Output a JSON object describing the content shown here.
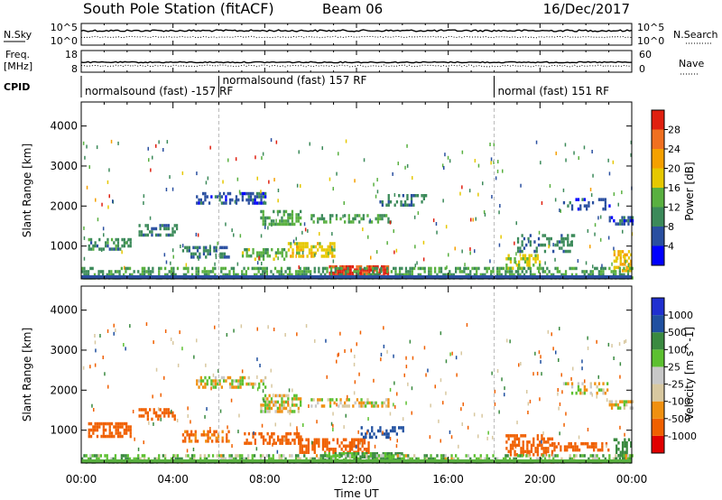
{
  "header": {
    "station": "South Pole Station (fitACF)",
    "beam": "Beam 06",
    "date": "16/Dec/2017"
  },
  "top_panels": {
    "nsky_label": "N.Sky",
    "nsearch_label": "N.Search",
    "freq_label_line1": "Freq.",
    "freq_label_line2": "[MHz]",
    "nave_label": "Nave",
    "cpid_label": "CPID",
    "noise_ticks_left": [
      "10^5",
      "10^0"
    ],
    "noise_ticks_right": [
      "10^5",
      "10^0"
    ],
    "freq_ticks": [
      "18",
      "8"
    ],
    "nave_ticks": [
      "60",
      "0"
    ],
    "cpid_segments": [
      {
        "label": "normalsound (fast) -157 RF",
        "start_hr": 0,
        "end_hr": 6
      },
      {
        "label": "normalsound (fast) 157 RF",
        "start_hr": 6,
        "end_hr": 18
      },
      {
        "label": "normal (fast) 151 RF",
        "start_hr": 18,
        "end_hr": 24
      }
    ]
  },
  "x_axis": {
    "label": "Time UT",
    "ticks": [
      "00:00",
      "04:00",
      "08:00",
      "12:00",
      "16:00",
      "20:00",
      "00:00"
    ],
    "range_hr": [
      0,
      24
    ]
  },
  "colors": {
    "power": [
      "#0000ff",
      "#2a4fa0",
      "#3c8a5a",
      "#59b040",
      "#e6c800",
      "#f5a000",
      "#f07020",
      "#e02010"
    ],
    "velocity": [
      "#e00000",
      "#f06000",
      "#f09010",
      "#d8c8a0",
      "#c8c8c8",
      "#5cc030",
      "#3a8a40",
      "#2050a0",
      "#2030d0"
    ]
  },
  "chart_data": [
    {
      "type": "heatmap",
      "title": "",
      "xlabel": "Time UT",
      "ylabel": "Slant Range [km]",
      "x_range_hr": [
        0,
        24
      ],
      "ylim": [
        180,
        4600
      ],
      "y_ticks": [
        "1000",
        "2000",
        "3000",
        "4000"
      ],
      "colorbar": {
        "label": "Power [dB]",
        "ticks": [
          "4",
          "8",
          "12",
          "16",
          "20",
          "24",
          "28"
        ],
        "range": [
          0,
          32
        ]
      },
      "echo_bands": [
        {
          "t0": 0.3,
          "t1": 2.2,
          "r0": 900,
          "r1": 1200,
          "value": 10,
          "density": 0.55
        },
        {
          "t0": 2.5,
          "t1": 4.2,
          "r0": 1250,
          "r1": 1550,
          "value": 9,
          "density": 0.5
        },
        {
          "t0": 4.4,
          "t1": 6.4,
          "r0": 700,
          "r1": 1000,
          "value": 9,
          "density": 0.45
        },
        {
          "t0": 5.0,
          "t1": 8.0,
          "r0": 2100,
          "r1": 2350,
          "value": 6,
          "density": 0.45
        },
        {
          "t0": 7.8,
          "t1": 9.6,
          "r0": 1550,
          "r1": 1900,
          "value": 13,
          "density": 0.6
        },
        {
          "t0": 7.0,
          "t1": 9.0,
          "r0": 650,
          "r1": 950,
          "value": 14,
          "density": 0.55
        },
        {
          "t0": 9.0,
          "t1": 11.0,
          "r0": 750,
          "r1": 1100,
          "value": 18,
          "density": 0.55
        },
        {
          "t0": 10.8,
          "t1": 13.4,
          "r0": 240,
          "r1": 520,
          "value": 29,
          "density": 0.85
        },
        {
          "t0": 10.0,
          "t1": 13.5,
          "r0": 1600,
          "r1": 1800,
          "value": 11,
          "density": 0.45
        },
        {
          "t0": 13.0,
          "t1": 15.0,
          "r0": 2000,
          "r1": 2300,
          "value": 8,
          "density": 0.4
        },
        {
          "t0": 18.5,
          "t1": 20.0,
          "r0": 450,
          "r1": 800,
          "value": 16,
          "density": 0.5
        },
        {
          "t0": 19.0,
          "t1": 21.5,
          "r0": 900,
          "r1": 1300,
          "value": 9,
          "density": 0.35
        },
        {
          "t0": 21.0,
          "t1": 23.0,
          "r0": 1900,
          "r1": 2200,
          "value": 6,
          "density": 0.35
        },
        {
          "t0": 23.0,
          "t1": 24.0,
          "r0": 1550,
          "r1": 1750,
          "value": 6,
          "density": 0.6
        },
        {
          "t0": 23.2,
          "t1": 24.0,
          "r0": 400,
          "r1": 900,
          "value": 20,
          "density": 0.6
        },
        {
          "t0": 0.0,
          "t1": 24.0,
          "r0": 180,
          "r1": 480,
          "value": 12,
          "density": 0.5
        }
      ]
    },
    {
      "type": "heatmap",
      "title": "",
      "xlabel": "Time UT",
      "ylabel": "Slant Range [km]",
      "x_range_hr": [
        0,
        24
      ],
      "ylim": [
        180,
        4600
      ],
      "y_ticks": [
        "1000",
        "2000",
        "3000",
        "4000"
      ],
      "colorbar": {
        "label": "Velocity [m s^-1]",
        "ticks": [
          "1000",
          "500",
          "100",
          "25",
          "-25",
          "-100",
          "-500",
          "-1000"
        ],
        "range": [
          -1200,
          1200
        ]
      },
      "echo_bands": [
        {
          "t0": 0.3,
          "t1": 2.2,
          "r0": 850,
          "r1": 1200,
          "value": -300,
          "density": 0.6
        },
        {
          "t0": 2.5,
          "t1": 4.2,
          "r0": 1250,
          "r1": 1550,
          "value": -250,
          "density": 0.55
        },
        {
          "t0": 4.4,
          "t1": 6.4,
          "r0": 700,
          "r1": 1000,
          "value": -150,
          "density": 0.5
        },
        {
          "t0": 5.0,
          "t1": 8.0,
          "r0": 2100,
          "r1": 2350,
          "value": 0,
          "density": 0.45
        },
        {
          "t0": 7.8,
          "t1": 9.6,
          "r0": 1500,
          "r1": 1900,
          "value": 0,
          "density": 0.6
        },
        {
          "t0": 7.0,
          "t1": 9.6,
          "r0": 650,
          "r1": 950,
          "value": -300,
          "density": 0.55
        },
        {
          "t0": 9.5,
          "t1": 12.5,
          "r0": 450,
          "r1": 800,
          "value": -400,
          "density": 0.55
        },
        {
          "t0": 10.5,
          "t1": 14.0,
          "r0": 220,
          "r1": 450,
          "value": 120,
          "density": 0.7
        },
        {
          "t0": 10.0,
          "t1": 13.5,
          "r0": 1600,
          "r1": 1800,
          "value": 0,
          "density": 0.45
        },
        {
          "t0": 12.0,
          "t1": 14.0,
          "r0": 800,
          "r1": 1100,
          "value": 600,
          "density": 0.35
        },
        {
          "t0": 18.5,
          "t1": 20.5,
          "r0": 400,
          "r1": 900,
          "value": -350,
          "density": 0.6
        },
        {
          "t0": 20.5,
          "t1": 23.0,
          "r0": 500,
          "r1": 700,
          "value": -300,
          "density": 0.5
        },
        {
          "t0": 21.0,
          "t1": 23.0,
          "r0": 1900,
          "r1": 2200,
          "value": 0,
          "density": 0.35
        },
        {
          "t0": 23.0,
          "t1": 24.0,
          "r0": 1550,
          "r1": 1750,
          "value": 0,
          "density": 0.6
        },
        {
          "t0": 23.2,
          "t1": 24.0,
          "r0": 300,
          "r1": 800,
          "value": 200,
          "density": 0.6
        },
        {
          "t0": 0.0,
          "t1": 24.0,
          "r0": 180,
          "r1": 400,
          "value": 60,
          "density": 0.5
        }
      ]
    }
  ]
}
